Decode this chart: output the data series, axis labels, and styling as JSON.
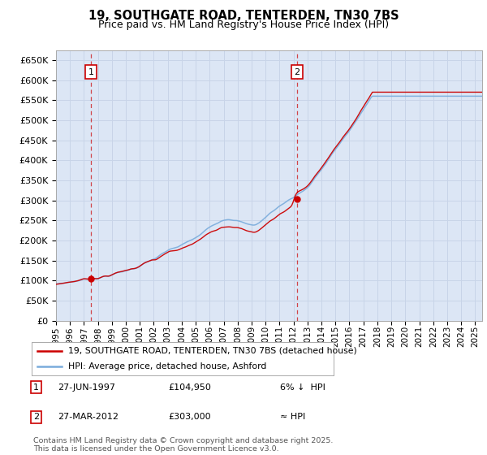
{
  "title_line1": "19, SOUTHGATE ROAD, TENTERDEN, TN30 7BS",
  "title_line2": "Price paid vs. HM Land Registry's House Price Index (HPI)",
  "ylim": [
    0,
    675000
  ],
  "yticks": [
    0,
    50000,
    100000,
    150000,
    200000,
    250000,
    300000,
    350000,
    400000,
    450000,
    500000,
    550000,
    600000,
    650000
  ],
  "ytick_labels": [
    "£0",
    "£50K",
    "£100K",
    "£150K",
    "£200K",
    "£250K",
    "£300K",
    "£350K",
    "£400K",
    "£450K",
    "£500K",
    "£550K",
    "£600K",
    "£650K"
  ],
  "xlim_start": 1995.0,
  "xlim_end": 2025.5,
  "grid_color": "#c8d4e8",
  "plot_bg_color": "#dce6f5",
  "line1_color": "#cc0000",
  "line2_color": "#7aacdc",
  "sale1_x": 1997.49,
  "sale1_y": 104950,
  "sale2_x": 2012.24,
  "sale2_y": 303000,
  "legend_label1": "19, SOUTHGATE ROAD, TENTERDEN, TN30 7BS (detached house)",
  "legend_label2": "HPI: Average price, detached house, Ashford",
  "note1_num": "1",
  "note1_date": "27-JUN-1997",
  "note1_price": "£104,950",
  "note1_hpi": "6% ↓  HPI",
  "note2_num": "2",
  "note2_date": "27-MAR-2012",
  "note2_price": "£303,000",
  "note2_hpi": "≈ HPI",
  "footer": "Contains HM Land Registry data © Crown copyright and database right 2025.\nThis data is licensed under the Open Government Licence v3.0."
}
